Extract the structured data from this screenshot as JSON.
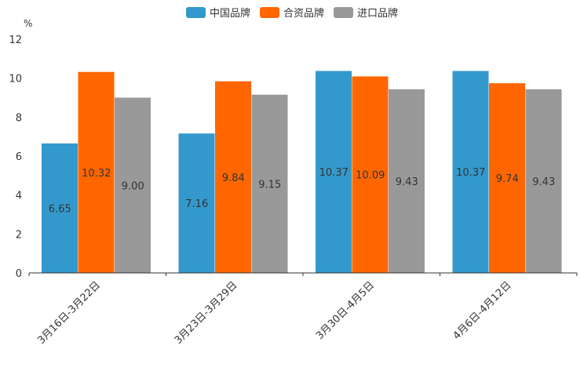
{
  "chart_data": {
    "type": "bar",
    "ylabel": "%",
    "ylim": [
      0,
      12
    ],
    "yticks": [
      "0",
      "2",
      "4",
      "6",
      "8",
      "10",
      "12"
    ],
    "categories": [
      "3月16日-3月22日",
      "3月23日-3月29日",
      "3月30日-4月5日",
      "4月6日-4月12日"
    ],
    "series": [
      {
        "name": "中国品牌",
        "color": "#3399cc",
        "values": [
          6.65,
          7.16,
          10.37,
          10.37
        ],
        "labels": [
          "6.65",
          "7.16",
          "10.37",
          "10.37"
        ]
      },
      {
        "name": "合资品牌",
        "color": "#ff6600",
        "values": [
          10.32,
          9.84,
          10.09,
          9.74
        ],
        "labels": [
          "10.32",
          "9.84",
          "10.09",
          "9.74"
        ]
      },
      {
        "name": "进口品牌",
        "color": "#999999",
        "values": [
          9.0,
          9.15,
          9.43,
          9.43
        ],
        "labels": [
          "9.00",
          "9.15",
          "9.43",
          "9.43"
        ]
      }
    ],
    "legend_position": "top-center",
    "grid": false
  }
}
